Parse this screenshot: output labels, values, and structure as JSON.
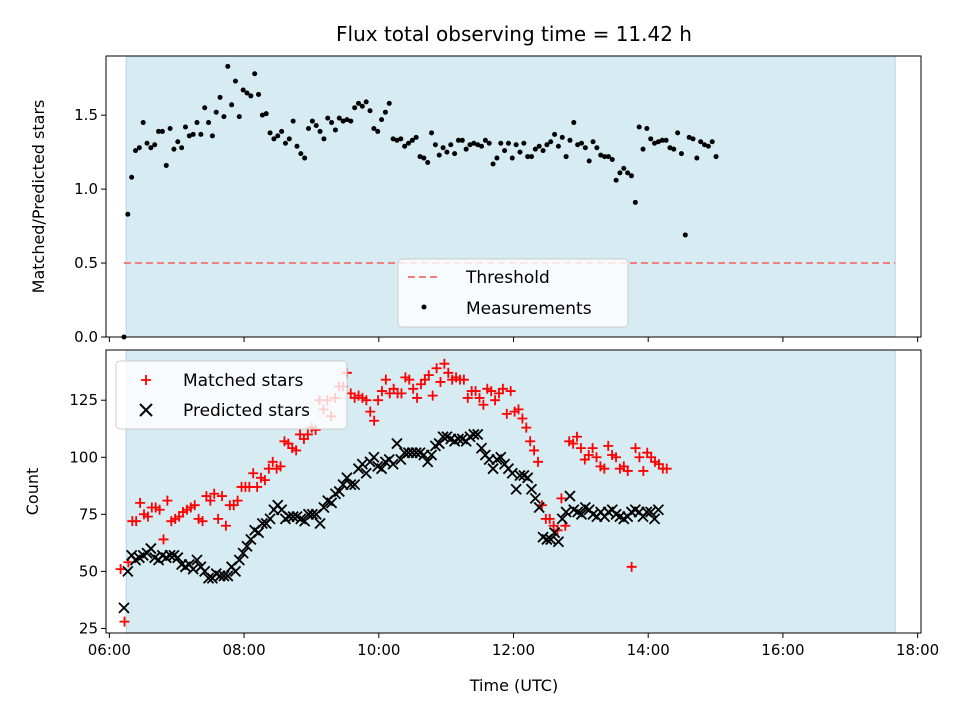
{
  "figure": {
    "title": "Flux total observing time = 11.42 h",
    "xlabel": "Time (UTC)"
  },
  "colors": {
    "shade": "#add8e6",
    "threshold": "#f08080",
    "measurement": "#000000",
    "matched": "#ff0000",
    "predicted": "#000000"
  },
  "chart_data": [
    {
      "type": "scatter",
      "ylabel": "Matched/Predicted stars",
      "xlim": [
        "05:57",
        "18:03"
      ],
      "ylim": [
        0,
        1.9
      ],
      "yticks": [
        0.0,
        0.5,
        1.0,
        1.5
      ],
      "ytick_labels": [
        "0.0",
        "0.5",
        "1.0",
        "1.5"
      ],
      "shaded_span": [
        "06:15",
        "17:40"
      ],
      "legend": {
        "position": "lower center",
        "entries": [
          "Threshold",
          "Measurements"
        ]
      },
      "series": [
        {
          "name": "Threshold",
          "kind": "dashed-line",
          "x": [
            "06:13",
            "17:40"
          ],
          "y": [
            0.5,
            0.5
          ]
        },
        {
          "name": "Measurements",
          "kind": "dots",
          "x_start": "06:13",
          "x_step_min": 3.425,
          "y": [
            0.0,
            0.83,
            1.08,
            1.26,
            1.28,
            1.45,
            1.31,
            1.28,
            1.3,
            1.39,
            1.39,
            1.16,
            1.41,
            1.27,
            1.32,
            1.28,
            1.42,
            1.36,
            1.37,
            1.45,
            1.37,
            1.55,
            1.45,
            1.36,
            1.52,
            1.62,
            1.49,
            1.83,
            1.57,
            1.73,
            1.49,
            1.67,
            1.65,
            1.63,
            1.78,
            1.64,
            1.5,
            1.51,
            1.38,
            1.34,
            1.36,
            1.39,
            1.31,
            1.34,
            1.46,
            1.29,
            1.24,
            1.21,
            1.41,
            1.46,
            1.43,
            1.39,
            1.34,
            1.48,
            1.45,
            1.4,
            1.48,
            1.46,
            1.47,
            1.46,
            1.55,
            1.58,
            1.56,
            1.59,
            1.53,
            1.41,
            1.39,
            1.47,
            1.52,
            1.58,
            1.34,
            1.33,
            1.34,
            1.29,
            1.31,
            1.33,
            1.35,
            1.22,
            1.21,
            1.18,
            1.38,
            1.3,
            1.23,
            1.28,
            1.25,
            1.3,
            1.24,
            1.33,
            1.33,
            1.27,
            1.3,
            1.31,
            1.3,
            1.29,
            1.33,
            1.31,
            1.17,
            1.21,
            1.31,
            1.26,
            1.31,
            1.21,
            1.3,
            1.25,
            1.31,
            1.22,
            1.22,
            1.27,
            1.29,
            1.26,
            1.3,
            1.32,
            1.37,
            1.29,
            1.35,
            1.22,
            1.33,
            1.45,
            1.3,
            1.31,
            1.28,
            1.19,
            1.32,
            1.28,
            1.23,
            1.22,
            1.22,
            1.2,
            1.06,
            1.11,
            1.14,
            1.11,
            1.09,
            0.91,
            1.42,
            1.27,
            1.41,
            1.34,
            1.31,
            1.32,
            1.33,
            1.33,
            1.28,
            1.27,
            1.38,
            1.24,
            0.69,
            1.35,
            1.34,
            1.21,
            1.32,
            1.3,
            1.29,
            1.32,
            1.22
          ]
        }
      ]
    },
    {
      "type": "scatter",
      "ylabel": "Count",
      "xlabel": "Time (UTC)",
      "xlim": [
        "05:57",
        "18:03"
      ],
      "ylim": [
        23,
        147
      ],
      "yticks": [
        25,
        50,
        75,
        100,
        125
      ],
      "xticks": [
        "06:00",
        "08:00",
        "10:00",
        "12:00",
        "14:00",
        "16:00",
        "18:00"
      ],
      "shaded_span": [
        "06:15",
        "17:40"
      ],
      "legend": {
        "position": "upper left",
        "entries": [
          "Matched stars",
          "Predicted stars"
        ]
      },
      "series": [
        {
          "name": "Matched stars",
          "marker": "+",
          "x_start": "06:10",
          "x_step_min": 3.475,
          "y": [
            51,
            28,
            54,
            72,
            72,
            80,
            75,
            74,
            78,
            78,
            77,
            64,
            81,
            72,
            73,
            74,
            76,
            77,
            78,
            79,
            73,
            72,
            83,
            81,
            84,
            73,
            83,
            70,
            79,
            79,
            81,
            87,
            87,
            87,
            93,
            87,
            91,
            90,
            95,
            98,
            95,
            96,
            107,
            106,
            104,
            103,
            110,
            108,
            110,
            113,
            112,
            125,
            121,
            125,
            118,
            126,
            131,
            131,
            137,
            128,
            126,
            127,
            126,
            125,
            120,
            116,
            125,
            129,
            134,
            128,
            130,
            128,
            128,
            135,
            134,
            130,
            126,
            132,
            134,
            136,
            127,
            139,
            133,
            141,
            137,
            134,
            135,
            134,
            134,
            126,
            129,
            129,
            126,
            123,
            130,
            129,
            125,
            128,
            130,
            119,
            129,
            120,
            121,
            117,
            113,
            107,
            103,
            98,
            79,
            73,
            73,
            70,
            68,
            82,
            70,
            107,
            106,
            109,
            104,
            99,
            101,
            104,
            100,
            96,
            95,
            105,
            101,
            100,
            95,
            96,
            94,
            52,
            104,
            100,
            94,
            102,
            100,
            98,
            97,
            95,
            95
          ]
        },
        {
          "name": "Predicted stars",
          "marker": "x",
          "x_start": "06:13",
          "x_step_min": 3.425,
          "y": [
            34,
            50,
            57,
            55,
            56,
            57,
            58,
            60,
            56,
            55,
            57,
            56,
            57,
            57,
            56,
            53,
            52,
            53,
            51,
            55,
            52,
            50,
            47,
            47,
            49,
            48,
            48,
            48,
            52,
            50,
            55,
            58,
            61,
            64,
            68,
            67,
            71,
            71,
            73,
            77,
            79,
            77,
            73,
            74,
            74,
            74,
            73,
            72,
            75,
            75,
            75,
            71,
            78,
            81,
            80,
            84,
            85,
            88,
            91,
            88,
            88,
            95,
            97,
            93,
            98,
            100,
            96,
            95,
            98,
            99,
            97,
            106,
            99,
            102,
            102,
            102,
            102,
            102,
            101,
            98,
            101,
            105,
            106,
            109,
            109,
            108,
            107,
            108,
            108,
            107,
            109,
            110,
            110,
            104,
            101,
            99,
            95,
            99,
            100,
            97,
            95,
            93,
            86,
            92,
            92,
            91,
            86,
            82,
            78,
            65,
            64,
            64,
            67,
            63,
            73,
            76,
            83,
            77,
            76,
            75,
            78,
            77,
            75,
            74,
            76,
            74,
            76,
            77,
            75,
            74,
            73,
            74,
            76,
            77,
            76,
            74,
            76,
            76,
            73,
            77
          ]
        }
      ]
    }
  ]
}
